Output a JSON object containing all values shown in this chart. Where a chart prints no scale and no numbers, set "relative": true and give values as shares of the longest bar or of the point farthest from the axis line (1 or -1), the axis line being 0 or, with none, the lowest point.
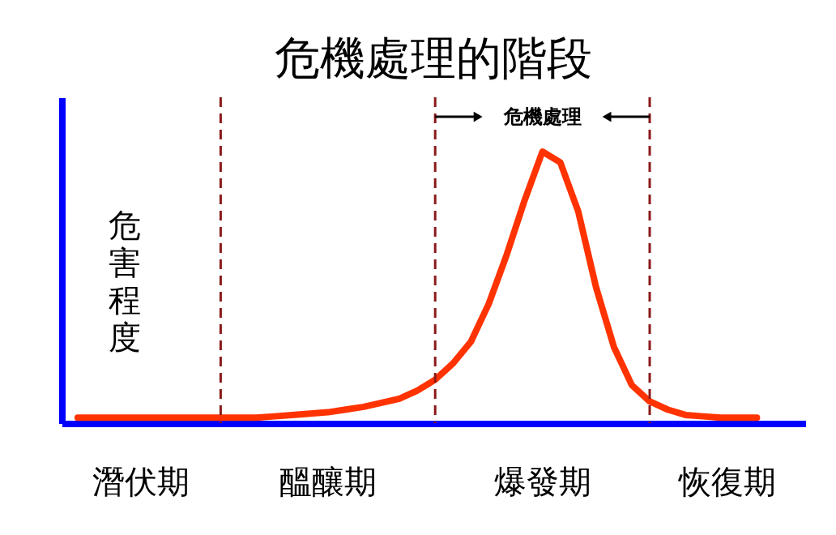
{
  "chart_data": {
    "type": "line",
    "title": "危機處理的階段",
    "ylabel": "危害程度",
    "relative": true,
    "marker": "none",
    "line_style": "solid",
    "categories": [
      null,
      null,
      null,
      null,
      null,
      null,
      null,
      null,
      null,
      null,
      null,
      null,
      null,
      null,
      null,
      null,
      null,
      null,
      null,
      null,
      null,
      null,
      null,
      null,
      null,
      null,
      null,
      null,
      null,
      null,
      null,
      null,
      null,
      null,
      null,
      null,
      null,
      null,
      null
    ],
    "series": [
      {
        "color": "#ff3300",
        "values": [
          0.02,
          0.02,
          0.02,
          0.02,
          0.02,
          0.02,
          0.02,
          0.02,
          0.02,
          0.02,
          0.02,
          0.025,
          0.03,
          0.035,
          0.04,
          0.05,
          0.06,
          0.075,
          0.09,
          0.12,
          0.16,
          0.22,
          0.3,
          0.44,
          0.62,
          0.82,
          1,
          0.96,
          0.78,
          0.5,
          0.28,
          0.14,
          0.08,
          0.05,
          0.03,
          0.025,
          0.02,
          0.02,
          0.02
        ]
      }
    ],
    "grid": "x",
    "annotations": [
      "潛伏期",
      "醞釀期",
      "爆發期",
      "恢復期",
      "危機處理"
    ]
  }
}
